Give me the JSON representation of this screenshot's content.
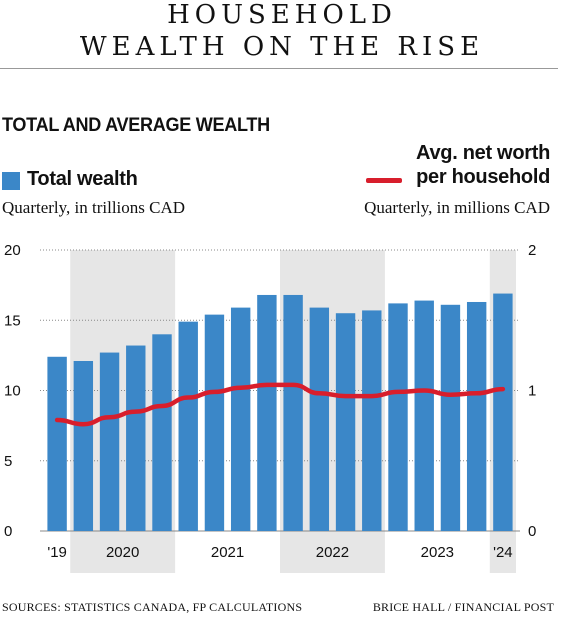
{
  "header": {
    "title_line1": "HOUSEHOLD",
    "title_line2": "WEALTH ON THE RISE",
    "subtitle": "TOTAL AND AVERAGE WEALTH"
  },
  "legend": {
    "bars_label": "Total wealth",
    "bars_unit": "Quarterly, in trillions CAD",
    "line_label_1": "Avg. net worth",
    "line_label_2": "per household",
    "line_unit": "Quarterly, in millions CAD"
  },
  "footer": {
    "source": "SOURCES: STATISTICS CANADA, FP CALCULATIONS",
    "credit": "BRICE HALL / FINANCIAL POST"
  },
  "colors": {
    "bar": "#3b87c8",
    "line": "#d81e2c",
    "band": "#e6e6e6"
  },
  "chart_data": {
    "type": "bar",
    "categories": [
      "2019Q4",
      "2020Q1",
      "2020Q2",
      "2020Q3",
      "2020Q4",
      "2021Q1",
      "2021Q2",
      "2021Q3",
      "2021Q4",
      "2022Q1",
      "2022Q2",
      "2022Q3",
      "2022Q4",
      "2023Q1",
      "2023Q2",
      "2023Q3",
      "2023Q4",
      "2024Q1"
    ],
    "series": [
      {
        "name": "Total wealth",
        "axis": "left",
        "type": "bar",
        "values": [
          12.4,
          12.1,
          12.7,
          13.2,
          14.0,
          14.9,
          15.4,
          15.9,
          16.8,
          16.8,
          15.9,
          15.5,
          15.7,
          16.2,
          16.4,
          16.1,
          16.3,
          16.9
        ]
      },
      {
        "name": "Avg. net worth per household",
        "axis": "right",
        "type": "line",
        "values": [
          0.79,
          0.76,
          0.81,
          0.85,
          0.89,
          0.95,
          0.99,
          1.02,
          1.04,
          1.04,
          0.98,
          0.96,
          0.96,
          0.99,
          1.0,
          0.97,
          0.98,
          1.01
        ]
      }
    ],
    "x_tick_labels": [
      "'19",
      "2020",
      "2021",
      "2022",
      "2023",
      "'24"
    ],
    "ylim_left": [
      0,
      20
    ],
    "yticks_left": [
      "0",
      "5",
      "10",
      "15",
      "20"
    ],
    "ylim_right": [
      0,
      2
    ],
    "yticks_right": [
      "0",
      "1",
      "2"
    ],
    "shaded_years": [
      "2020",
      "2022",
      "2024"
    ],
    "grid": "horizontal dotted"
  }
}
